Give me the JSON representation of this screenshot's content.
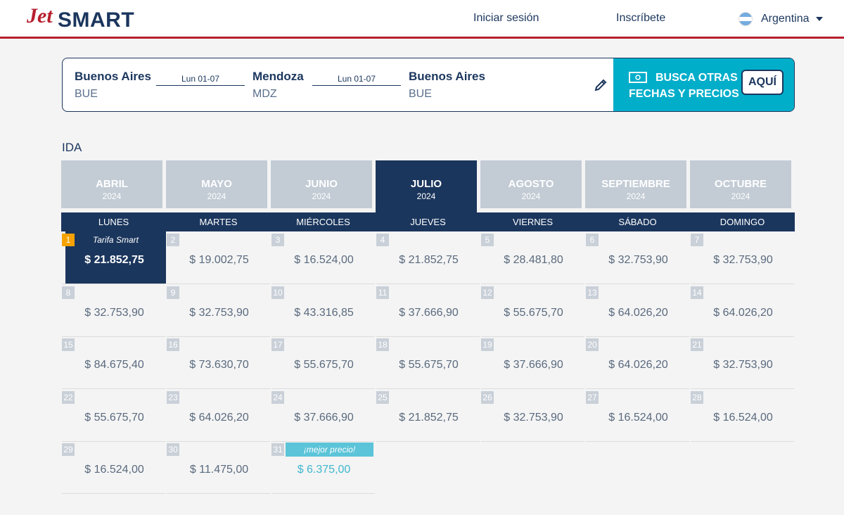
{
  "header": {
    "logo_jet": "Jet",
    "logo_smart": "SMART",
    "login": "Iniciar sesión",
    "signup": "Inscríbete",
    "country": "Argentina"
  },
  "search": {
    "legs": [
      {
        "city": "Buenos Aires",
        "code": "BUE"
      },
      {
        "city": "Mendoza",
        "code": "MDZ"
      },
      {
        "city": "Buenos Aires",
        "code": "BUE"
      }
    ],
    "dates": [
      "Lun 01-07",
      "Lun 01-07"
    ],
    "promo": "BUSCA OTRAS FECHAS Y PRECIOS",
    "promo_button": "AQUÍ"
  },
  "calendar": {
    "label": "IDA",
    "months": [
      {
        "name": "ABRIL",
        "year": 2024
      },
      {
        "name": "MAYO",
        "year": 2024
      },
      {
        "name": "JUNIO",
        "year": 2024
      },
      {
        "name": "JULIO",
        "year": 2024
      },
      {
        "name": "AGOSTO",
        "year": 2024
      },
      {
        "name": "SEPTIEMBRE",
        "year": 2024
      },
      {
        "name": "OCTUBRE",
        "year": 2024
      }
    ],
    "weekdays": [
      "LUNES",
      "MARTES",
      "MIÉRCOLES",
      "JUEVES",
      "VIERNES",
      "SÁBADO",
      "DOMINGO"
    ],
    "days": [
      {
        "day": 1,
        "price": "$ 21.852,75",
        "tag": "Tarifa Smart"
      },
      {
        "day": 2,
        "price": "$ 19.002,75"
      },
      {
        "day": 3,
        "price": "$ 16.524,00"
      },
      {
        "day": 4,
        "price": "$ 21.852,75"
      },
      {
        "day": 5,
        "price": "$ 28.481,80"
      },
      {
        "day": 6,
        "price": "$ 32.753,90"
      },
      {
        "day": 7,
        "price": "$ 32.753,90"
      },
      {
        "day": 8,
        "price": "$ 32.753,90"
      },
      {
        "day": 9,
        "price": "$ 32.753,90"
      },
      {
        "day": 10,
        "price": "$ 43.316,85"
      },
      {
        "day": 11,
        "price": "$ 37.666,90"
      },
      {
        "day": 12,
        "price": "$ 55.675,70"
      },
      {
        "day": 13,
        "price": "$ 64.026,20"
      },
      {
        "day": 14,
        "price": "$ 64.026,20"
      },
      {
        "day": 15,
        "price": "$ 84.675,40"
      },
      {
        "day": 16,
        "price": "$ 73.630,70"
      },
      {
        "day": 17,
        "price": "$ 55.675,70"
      },
      {
        "day": 18,
        "price": "$ 55.675,70"
      },
      {
        "day": 19,
        "price": "$ 37.666,90"
      },
      {
        "day": 20,
        "price": "$ 64.026,20"
      },
      {
        "day": 21,
        "price": "$ 32.753,90"
      },
      {
        "day": 22,
        "price": "$ 55.675,70"
      },
      {
        "day": 23,
        "price": "$ 64.026,20"
      },
      {
        "day": 24,
        "price": "$ 37.666,90"
      },
      {
        "day": 25,
        "price": "$ 21.852,75"
      },
      {
        "day": 26,
        "price": "$ 32.753,90"
      },
      {
        "day": 27,
        "price": "$ 16.524,00"
      },
      {
        "day": 28,
        "price": "$ 16.524,00"
      },
      {
        "day": 29,
        "price": "$ 16.524,00"
      },
      {
        "day": 30,
        "price": "$ 11.475,00"
      },
      {
        "day": 31,
        "price": "$ 6.375,00",
        "tag": "¡mejor precio!"
      }
    ]
  }
}
